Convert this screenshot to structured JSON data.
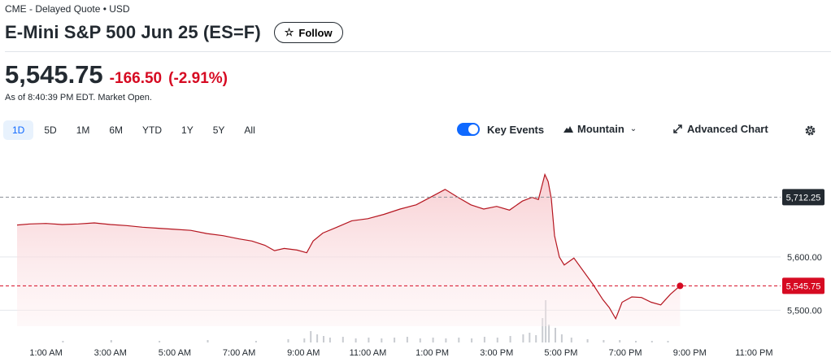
{
  "header": {
    "exchange_info": "CME - Delayed Quote • USD",
    "title": "E-Mini S&P 500 Jun 25 (ES=F)",
    "follow_label": "Follow"
  },
  "quote": {
    "price": "5,545.75",
    "change": "-166.50",
    "change_percent": "(-2.91%)",
    "as_of": "As of 8:40:39 PM EDT. Market Open."
  },
  "range_tabs": [
    {
      "label": "1D",
      "active": true
    },
    {
      "label": "5D",
      "active": false
    },
    {
      "label": "1M",
      "active": false
    },
    {
      "label": "6M",
      "active": false
    },
    {
      "label": "YTD",
      "active": false
    },
    {
      "label": "1Y",
      "active": false
    },
    {
      "label": "5Y",
      "active": false
    },
    {
      "label": "All",
      "active": false
    }
  ],
  "toolbar": {
    "key_events_label": "Key Events",
    "key_events_on": true,
    "chart_type_label": "Mountain",
    "advanced_chart_label": "Advanced Chart"
  },
  "colors": {
    "negative": "#d60a22",
    "accent": "#0f69ff",
    "line": "#b5151f",
    "fill": "#f7c9cd"
  },
  "chart_data": {
    "type": "area",
    "x_labels": [
      "1:00 AM",
      "3:00 AM",
      "5:00 AM",
      "7:00 AM",
      "9:00 AM",
      "11:00 AM",
      "1:00 PM",
      "3:00 PM",
      "5:00 PM",
      "7:00 PM",
      "9:00 PM",
      "11:00 PM"
    ],
    "y_ticks": [
      "5,600.00",
      "5,500.00"
    ],
    "ylim": [
      5470,
      5800
    ],
    "xlim_hours": [
      0,
      24
    ],
    "previous_close": {
      "value": 5712.25,
      "label": "5,712.25"
    },
    "current": {
      "value": 5545.75,
      "label": "5,545.75",
      "hour": 20.7
    },
    "series": [
      {
        "points": [
          [
            0.1,
            5660
          ],
          [
            0.5,
            5662
          ],
          [
            1.0,
            5663
          ],
          [
            1.5,
            5661
          ],
          [
            2.0,
            5662
          ],
          [
            2.5,
            5664
          ],
          [
            3.0,
            5661
          ],
          [
            3.5,
            5659
          ],
          [
            4.0,
            5656
          ],
          [
            4.5,
            5654
          ],
          [
            5.0,
            5652
          ],
          [
            5.5,
            5650
          ],
          [
            6.0,
            5644
          ],
          [
            6.5,
            5640
          ],
          [
            7.0,
            5634
          ],
          [
            7.4,
            5630
          ],
          [
            7.8,
            5622
          ],
          [
            8.1,
            5612
          ],
          [
            8.4,
            5616
          ],
          [
            8.8,
            5613
          ],
          [
            9.1,
            5608
          ],
          [
            9.3,
            5630
          ],
          [
            9.6,
            5645
          ],
          [
            10.0,
            5655
          ],
          [
            10.5,
            5668
          ],
          [
            11.0,
            5672
          ],
          [
            11.5,
            5680
          ],
          [
            12.0,
            5690
          ],
          [
            12.5,
            5698
          ],
          [
            13.0,
            5714
          ],
          [
            13.4,
            5727
          ],
          [
            13.8,
            5712
          ],
          [
            14.2,
            5698
          ],
          [
            14.6,
            5690
          ],
          [
            15.0,
            5695
          ],
          [
            15.4,
            5688
          ],
          [
            15.8,
            5705
          ],
          [
            16.1,
            5712
          ],
          [
            16.3,
            5708
          ],
          [
            16.5,
            5755
          ],
          [
            16.6,
            5742
          ],
          [
            16.7,
            5710
          ],
          [
            16.8,
            5640
          ],
          [
            16.95,
            5600
          ],
          [
            17.1,
            5585
          ],
          [
            17.4,
            5598
          ],
          [
            18.0,
            5548
          ],
          [
            18.3,
            5520
          ],
          [
            18.5,
            5505
          ],
          [
            18.7,
            5484
          ],
          [
            18.9,
            5515
          ],
          [
            19.2,
            5525
          ],
          [
            19.5,
            5524
          ],
          [
            19.8,
            5515
          ],
          [
            20.1,
            5510
          ],
          [
            20.4,
            5530
          ],
          [
            20.7,
            5546
          ]
        ]
      }
    ],
    "volume_hours": [
      [
        1.5,
        2
      ],
      [
        3.0,
        3
      ],
      [
        4.5,
        2
      ],
      [
        6.0,
        3
      ],
      [
        7.5,
        2
      ],
      [
        8.5,
        4
      ],
      [
        9.0,
        5
      ],
      [
        9.2,
        14
      ],
      [
        9.4,
        10
      ],
      [
        9.6,
        8
      ],
      [
        9.8,
        6
      ],
      [
        10.2,
        7
      ],
      [
        10.6,
        5
      ],
      [
        11.0,
        6
      ],
      [
        11.4,
        5
      ],
      [
        11.8,
        6
      ],
      [
        12.2,
        7
      ],
      [
        12.6,
        5
      ],
      [
        13.0,
        6
      ],
      [
        13.4,
        5
      ],
      [
        13.8,
        6
      ],
      [
        14.2,
        5
      ],
      [
        14.6,
        7
      ],
      [
        15.0,
        6
      ],
      [
        15.4,
        8
      ],
      [
        15.8,
        10
      ],
      [
        16.0,
        12
      ],
      [
        16.2,
        9
      ],
      [
        16.4,
        30
      ],
      [
        16.5,
        52
      ],
      [
        16.6,
        22
      ],
      [
        16.8,
        18
      ],
      [
        17.0,
        10
      ],
      [
        17.3,
        6
      ],
      [
        17.8,
        4
      ],
      [
        18.3,
        3
      ],
      [
        18.8,
        3
      ],
      [
        19.3,
        2
      ],
      [
        19.8,
        2
      ],
      [
        20.3,
        2
      ]
    ]
  }
}
